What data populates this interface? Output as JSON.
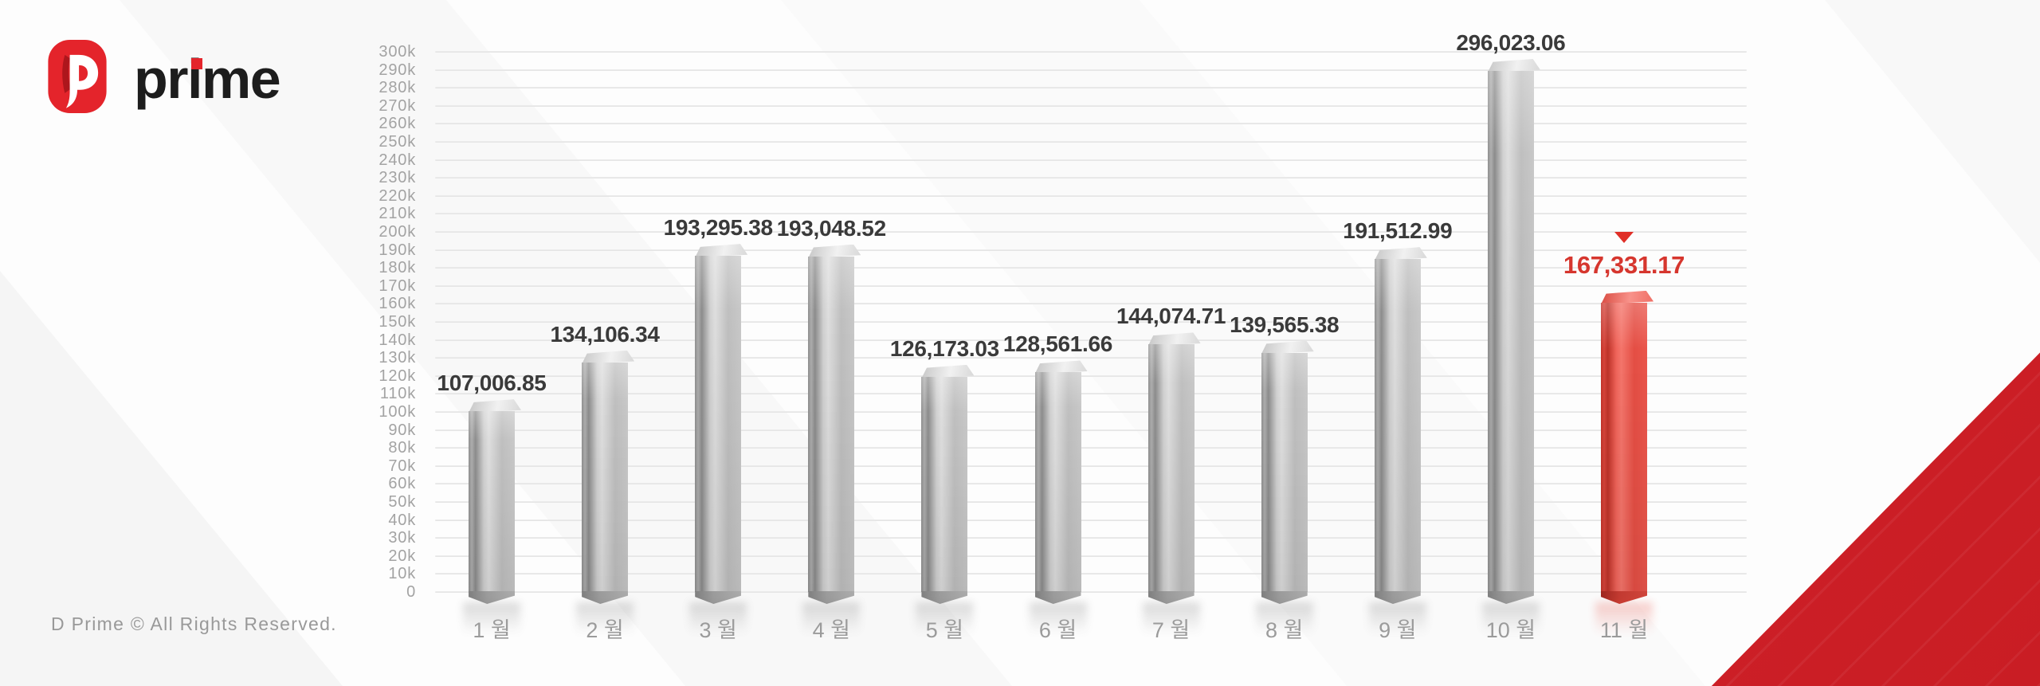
{
  "logo": {
    "mark": "D",
    "text": "prime"
  },
  "footer": {
    "copyright": "D Prime © All Rights Reserved."
  },
  "chart_data": {
    "type": "bar",
    "style": "3d-column",
    "title": "",
    "xlabel": "",
    "ylabel": "",
    "categories": [
      "1 월",
      "2 월",
      "3 월",
      "4 월",
      "5 월",
      "6 월",
      "7 월",
      "8 월",
      "9 월",
      "10 월",
      "11 월"
    ],
    "values": [
      107006.85,
      134106.34,
      193295.38,
      193048.52,
      126173.03,
      128561.66,
      144074.71,
      139565.38,
      191512.99,
      296023.06,
      167331.17
    ],
    "value_labels": [
      "107,006.85",
      "134,106.34",
      "193,295.38",
      "193,048.52",
      "126,173.03",
      "128,561.66",
      "144,074.71",
      "139,565.38",
      "191,512.99",
      "296,023.06",
      "167,331.17"
    ],
    "ylim": [
      0,
      300000
    ],
    "ytick_step": 10000,
    "ytick_labels": [
      "0",
      "10k",
      "20k",
      "30k",
      "40k",
      "50k",
      "60k",
      "70k",
      "80k",
      "90k",
      "100k",
      "110k",
      "120k",
      "130k",
      "140k",
      "150k",
      "160k",
      "170k",
      "180k",
      "190k",
      "200k",
      "210k",
      "220k",
      "230k",
      "240k",
      "250k",
      "260k",
      "270k",
      "280k",
      "290k",
      "300k"
    ],
    "grid": true,
    "legend": false,
    "highlight_index": 10,
    "highlight_marker": "triangle-down",
    "colors": {
      "accent": "#e02f27",
      "corner_red": "#d2232a",
      "bar_gray": "#c2c2c2",
      "bar_highlight": "#e8554a",
      "value_label": "#3a3a3a",
      "highlight_value_label": "#d6362e",
      "axis_text": "#a3a3a3",
      "gridline": "#e2e2e2",
      "logo_red": "#e4242b",
      "brand_dark": "#1d1d1d"
    }
  }
}
